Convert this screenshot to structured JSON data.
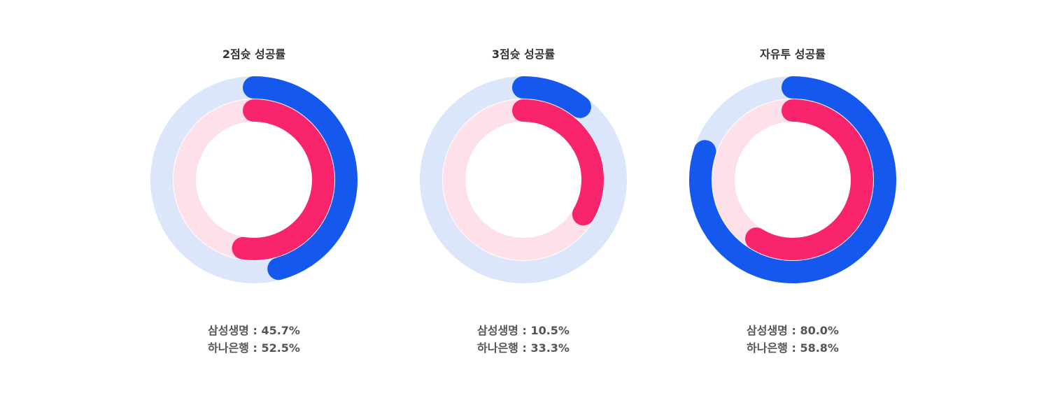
{
  "colors": {
    "samsung_track": "#dce6fa",
    "samsung": "#1458ed",
    "hana_track": "#fde0e8",
    "hana": "#f8256d"
  },
  "chart_data": [
    {
      "type": "donut",
      "title": "2점슛 성공률",
      "series": [
        {
          "name": "삼성생명",
          "value": 45.7,
          "label": "45.7%"
        },
        {
          "name": "하나은행",
          "value": 52.5,
          "label": "52.5%"
        }
      ]
    },
    {
      "type": "donut",
      "title": "3점슛 성공률",
      "series": [
        {
          "name": "삼성생명",
          "value": 10.5,
          "label": "10.5%"
        },
        {
          "name": "하나은행",
          "value": 33.3,
          "label": "33.3%"
        }
      ]
    },
    {
      "type": "donut",
      "title": "자유투 성공률",
      "series": [
        {
          "name": "삼성생명",
          "value": 80.0,
          "label": "80.0%"
        },
        {
          "name": "하나은행",
          "value": 58.8,
          "label": "58.8%"
        }
      ]
    }
  ],
  "separator": " : "
}
